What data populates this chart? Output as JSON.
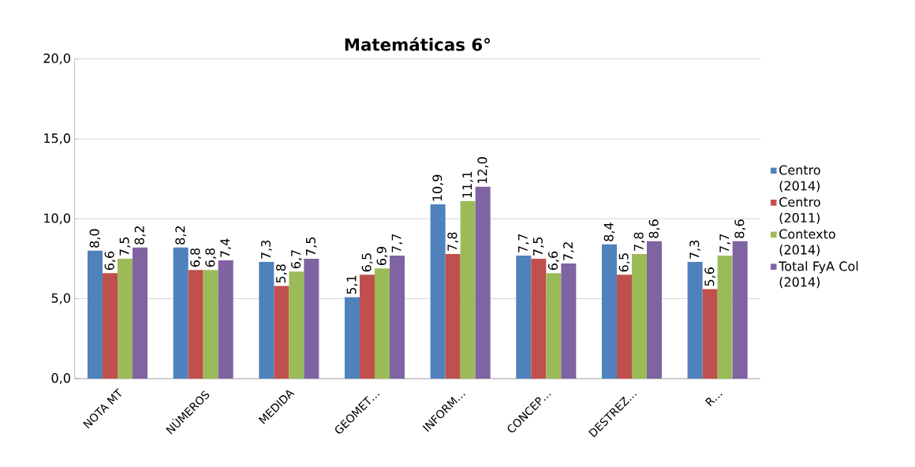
{
  "chart_data": {
    "type": "bar",
    "title": "**Matemáticas 6°**",
    "categories": [
      "NOTA MT",
      "NÚMEROS",
      "MEDIDA",
      "GEOMET…",
      "INFORM…",
      "CONCEP…",
      "DESTREZ…",
      "R…"
    ],
    "series": [
      {
        "name": "Centro (2014)",
        "color": "#4f81bd",
        "values": [
          8.0,
          8.2,
          7.3,
          5.1,
          10.9,
          7.7,
          8.4,
          7.3
        ],
        "value_labels": [
          "8,0",
          "8,2",
          "7,3",
          "5,1",
          "10,9",
          "7,7",
          "8,4",
          "7,3"
        ]
      },
      {
        "name": "Centro (2011)",
        "color": "#c0504d",
        "values": [
          6.6,
          6.8,
          5.8,
          6.5,
          7.8,
          7.5,
          6.5,
          5.6
        ],
        "value_labels": [
          "6,6",
          "6,8",
          "5,8",
          "6,5",
          "7,8",
          "7,5",
          "6,5",
          "5,6"
        ]
      },
      {
        "name": "Contexto (2014)",
        "color": "#9bbb59",
        "values": [
          7.5,
          6.8,
          6.7,
          6.9,
          11.1,
          6.6,
          7.8,
          7.7
        ],
        "value_labels": [
          "7,5",
          "6,8",
          "6,7",
          "6,9",
          "11,1",
          "6,6",
          "7,8",
          "7,7"
        ]
      },
      {
        "name": "Total FyA Col (2014)",
        "color": "#8064a2",
        "values": [
          8.2,
          7.4,
          7.5,
          7.7,
          12.0,
          7.2,
          8.6,
          8.6
        ],
        "value_labels": [
          "8,2",
          "7,4",
          "7,5",
          "7,7",
          "12,0",
          "7,2",
          "8,6",
          "8,6"
        ]
      }
    ],
    "ylim": [
      0,
      20
    ],
    "yticks": [
      {
        "value": 0,
        "label": "0,0"
      },
      {
        "value": 5,
        "label": "5,0"
      },
      {
        "value": 10,
        "label": "10,0"
      },
      {
        "value": 15,
        "label": "15,0"
      },
      {
        "value": 20,
        "label": "20,0"
      }
    ],
    "grid": "y",
    "legend": "right"
  }
}
